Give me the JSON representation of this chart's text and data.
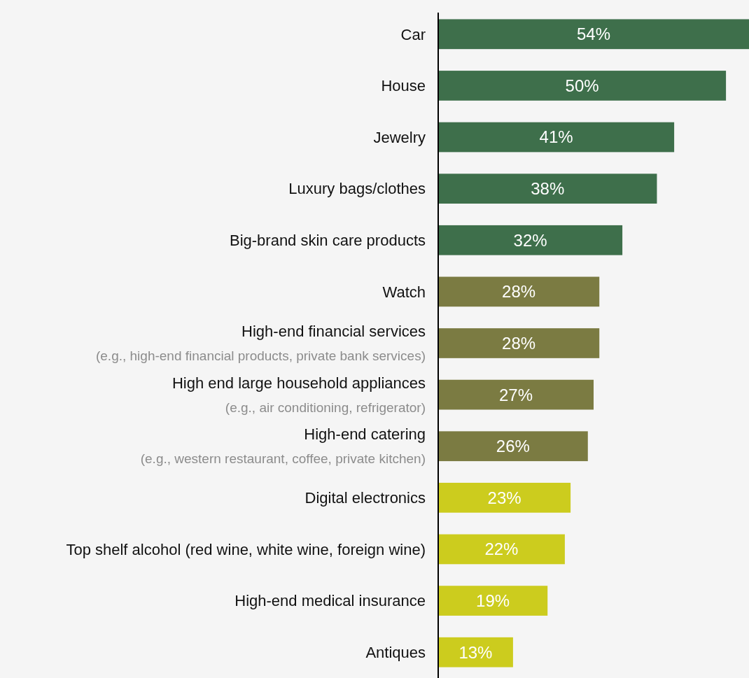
{
  "chart_data": {
    "type": "bar",
    "orientation": "horizontal",
    "tick_labels": "y",
    "categories": [
      "Car",
      "House",
      "Jewelry",
      "Luxury bags/clothes",
      "Big-brand skin care products",
      "Watch",
      "High-end financial services\n(e.g., high-end financial products, private bank services)",
      "High end large household appliances\n(e.g., air conditioning, refrigerator)",
      "High-end catering\n(e.g., western restaurant, coffee, private kitchen)",
      "Digital electronics",
      "Top shelf alcohol (red wine, white wine, foreign wine)",
      "High-end medical insurance",
      "Antiques"
    ],
    "values": [
      54,
      50,
      41,
      38,
      32,
      28,
      28,
      27,
      26,
      23,
      22,
      19,
      13
    ],
    "value_labels": [
      "54%",
      "50%",
      "41%",
      "38%",
      "32%",
      "28%",
      "28%",
      "27%",
      "26%",
      "23%",
      "22%",
      "19%",
      "13%"
    ],
    "colors": [
      "#3e6f4b",
      "#3e6f4b",
      "#3e6f4b",
      "#3e6f4b",
      "#3e6f4b",
      "#7b7b42",
      "#7b7b42",
      "#7b7b42",
      "#7b7b42",
      "#cccc1e",
      "#cccc1e",
      "#cccc1e",
      "#cccc1e"
    ]
  }
}
